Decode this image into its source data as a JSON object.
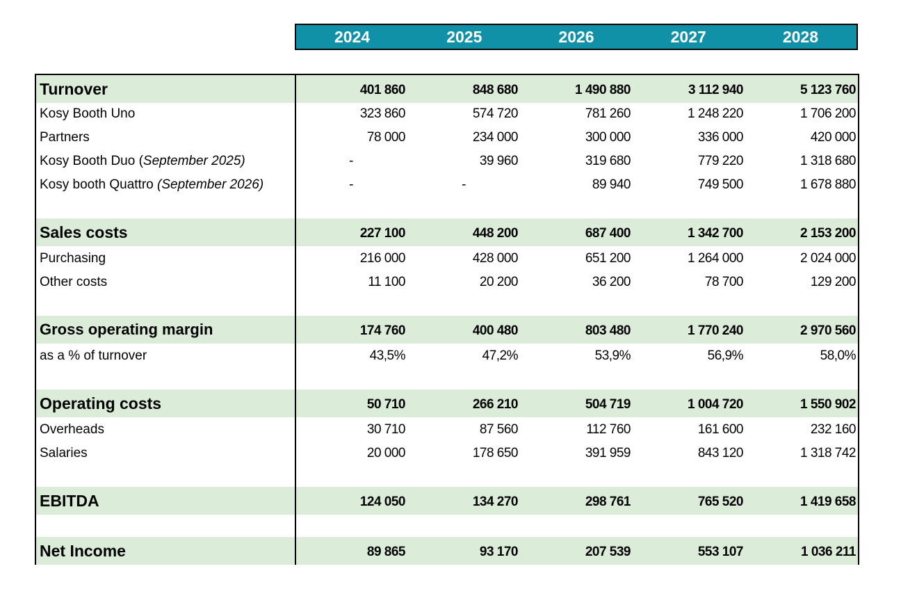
{
  "years": [
    "2024",
    "2025",
    "2026",
    "2027",
    "2028"
  ],
  "rows": [
    {
      "type": "section",
      "label": "Turnover",
      "values": [
        "401 860",
        "848 680",
        "1 490 880",
        "3 112 940",
        "5 123 760"
      ]
    },
    {
      "type": "item",
      "label": "Kosy Booth Uno",
      "note": "",
      "values": [
        "323 860",
        "574 720",
        "781 260",
        "1 248 220",
        "1 706 200"
      ]
    },
    {
      "type": "item",
      "label": "Partners",
      "note": "",
      "values": [
        "78 000",
        "234 000",
        "300 000",
        "336 000",
        "420 000"
      ]
    },
    {
      "type": "item",
      "label": "Kosy Booth Duo (",
      "note": "September 2025)",
      "values": [
        "-",
        "39 960",
        "319 680",
        "779 220",
        "1 318 680"
      ]
    },
    {
      "type": "item",
      "label": "Kosy booth Quattro ",
      "note": "(September 2026)",
      "values": [
        "-",
        "-",
        "89 940",
        "749 500",
        "1 678 880"
      ]
    },
    {
      "type": "section",
      "label": "Sales costs",
      "values": [
        "227 100",
        "448 200",
        "687 400",
        "1 342 700",
        "2 153 200"
      ]
    },
    {
      "type": "item",
      "label": "Purchasing",
      "note": "",
      "values": [
        "216 000",
        "428 000",
        "651 200",
        "1 264 000",
        "2 024 000"
      ]
    },
    {
      "type": "item",
      "label": "Other costs",
      "note": "",
      "values": [
        "11 100",
        "20 200",
        "36 200",
        "78 700",
        "129 200"
      ]
    },
    {
      "type": "section",
      "label": "Gross operating margin",
      "values": [
        "174 760",
        "400 480",
        "803 480",
        "1 770 240",
        "2 970 560"
      ]
    },
    {
      "type": "item",
      "label": "as a % of turnover",
      "note": "",
      "values": [
        "43,5%",
        "47,2%",
        "53,9%",
        "56,9%",
        "58,0%"
      ]
    },
    {
      "type": "section",
      "label": "Operating costs",
      "values": [
        "50 710",
        "266 210",
        "504 719",
        "1 004 720",
        "1 550 902"
      ]
    },
    {
      "type": "item",
      "label": "Overheads",
      "note": "",
      "values": [
        "30 710",
        "87 560",
        "112 760",
        "161 600",
        "232 160"
      ]
    },
    {
      "type": "item",
      "label": "Salaries",
      "note": "",
      "values": [
        "20 000",
        "178 650",
        "391 959",
        "843 120",
        "1 318 742"
      ]
    },
    {
      "type": "section",
      "label": "EBITDA",
      "values": [
        "124 050",
        "134 270",
        "298 761",
        "765 520",
        "1 419 658"
      ]
    },
    {
      "type": "section",
      "label": "Net Income",
      "values": [
        "89 865",
        "93 170",
        "207 539",
        "553 107",
        "1 036 211"
      ]
    }
  ]
}
